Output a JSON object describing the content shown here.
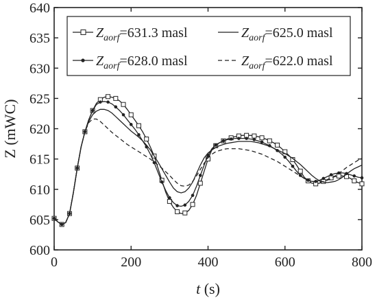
{
  "chart_data": {
    "type": "line",
    "xlabel_var": "t",
    "xlabel_unit": " (s)",
    "ylabel": "Z (mWC)",
    "xlim": [
      0,
      800
    ],
    "ylim": [
      600,
      640
    ],
    "xticks": [
      0,
      200,
      400,
      600,
      800
    ],
    "yticks": [
      600,
      605,
      610,
      615,
      620,
      625,
      630,
      635,
      640
    ],
    "grid": false,
    "legend_placement": "top",
    "series": [
      {
        "name_var": "Z",
        "name_sub": "aorf",
        "name_value": "=631.3 masl",
        "style": "solid-square-markers",
        "x": [
          0,
          10,
          20,
          30,
          40,
          50,
          60,
          70,
          80,
          90,
          100,
          110,
          120,
          130,
          140,
          150,
          160,
          170,
          180,
          190,
          200,
          210,
          220,
          230,
          240,
          250,
          260,
          270,
          280,
          290,
          300,
          310,
          320,
          330,
          340,
          350,
          360,
          370,
          380,
          390,
          400,
          410,
          420,
          430,
          440,
          450,
          460,
          470,
          480,
          490,
          500,
          510,
          520,
          530,
          540,
          550,
          560,
          570,
          580,
          590,
          600,
          610,
          620,
          630,
          640,
          650,
          660,
          670,
          680,
          690,
          700,
          710,
          720,
          730,
          740,
          750,
          760,
          770,
          780,
          790,
          800
        ],
        "y": [
          605.2,
          604.6,
          604.2,
          604.5,
          606.0,
          609.5,
          613.5,
          617.0,
          619.5,
          621.5,
          623.0,
          624.2,
          624.8,
          625.2,
          625.3,
          625.2,
          625.0,
          624.6,
          624.0,
          623.2,
          622.3,
          621.4,
          620.5,
          619.5,
          618.3,
          617.0,
          615.5,
          613.5,
          611.5,
          609.5,
          608.0,
          607.0,
          606.3,
          606.0,
          606.1,
          606.5,
          607.5,
          609.0,
          611.0,
          613.0,
          615.0,
          616.5,
          617.2,
          617.7,
          618.0,
          618.3,
          618.5,
          618.7,
          618.8,
          618.9,
          618.9,
          618.9,
          618.8,
          618.7,
          618.5,
          618.3,
          618.0,
          617.7,
          617.3,
          616.8,
          616.2,
          615.6,
          614.9,
          614.0,
          613.0,
          612.0,
          611.4,
          611.0,
          610.9,
          611.0,
          611.3,
          611.6,
          611.9,
          612.1,
          612.2,
          612.2,
          612.1,
          611.8,
          611.4,
          611.1,
          610.9
        ]
      },
      {
        "name_var": "Z",
        "name_sub": "aorf",
        "name_value": "=625.0 masl",
        "style": "solid",
        "x": [
          0,
          10,
          20,
          30,
          40,
          50,
          60,
          70,
          80,
          90,
          100,
          110,
          120,
          130,
          140,
          150,
          160,
          170,
          180,
          190,
          200,
          210,
          220,
          230,
          240,
          250,
          260,
          270,
          280,
          290,
          300,
          310,
          320,
          330,
          340,
          350,
          360,
          370,
          380,
          390,
          400,
          410,
          420,
          430,
          440,
          450,
          460,
          470,
          480,
          490,
          500,
          510,
          520,
          530,
          540,
          550,
          560,
          570,
          580,
          590,
          600,
          610,
          620,
          630,
          640,
          650,
          660,
          670,
          680,
          690,
          700,
          710,
          720,
          730,
          740,
          750,
          760,
          770,
          780,
          790,
          800
        ],
        "y": [
          605.2,
          604.6,
          604.2,
          604.5,
          606.0,
          609.5,
          613.5,
          617.0,
          619.5,
          621.2,
          622.3,
          622.9,
          623.2,
          623.2,
          623.0,
          622.6,
          622.0,
          621.4,
          620.8,
          620.2,
          619.6,
          619.1,
          618.6,
          618.0,
          617.3,
          616.5,
          615.5,
          614.5,
          613.4,
          612.3,
          611.2,
          610.2,
          609.6,
          609.4,
          609.6,
          610.2,
          611.2,
          612.6,
          614.0,
          615.2,
          616.0,
          616.5,
          616.9,
          617.2,
          617.4,
          617.6,
          617.7,
          617.8,
          617.9,
          617.9,
          617.9,
          617.9,
          617.8,
          617.7,
          617.5,
          617.3,
          617.1,
          616.8,
          616.5,
          616.2,
          615.9,
          615.5,
          615.1,
          614.6,
          614.1,
          613.5,
          612.9,
          612.3,
          611.8,
          611.4,
          611.2,
          611.1,
          611.2,
          611.3,
          611.6,
          612.0,
          612.5,
          613.0,
          613.4,
          613.7,
          614.0
        ]
      },
      {
        "name_var": "Z",
        "name_sub": "aorf",
        "name_value": "=628.0 masl",
        "style": "solid-dot-markers",
        "x": [
          0,
          10,
          20,
          30,
          40,
          50,
          60,
          70,
          80,
          90,
          100,
          110,
          120,
          130,
          140,
          150,
          160,
          170,
          180,
          190,
          200,
          210,
          220,
          230,
          240,
          250,
          260,
          270,
          280,
          290,
          300,
          310,
          320,
          330,
          340,
          350,
          360,
          370,
          380,
          390,
          400,
          410,
          420,
          430,
          440,
          450,
          460,
          470,
          480,
          490,
          500,
          510,
          520,
          530,
          540,
          550,
          560,
          570,
          580,
          590,
          600,
          610,
          620,
          630,
          640,
          650,
          660,
          670,
          680,
          690,
          700,
          710,
          720,
          730,
          740,
          750,
          760,
          770,
          780,
          790,
          800
        ],
        "y": [
          605.2,
          604.6,
          604.2,
          604.5,
          606.0,
          609.5,
          613.5,
          617.0,
          619.5,
          621.5,
          623.0,
          624.0,
          624.4,
          624.5,
          624.4,
          624.1,
          623.6,
          623.0,
          622.3,
          621.5,
          620.7,
          619.9,
          619.0,
          618.0,
          617.0,
          615.8,
          614.4,
          612.8,
          611.2,
          609.8,
          608.6,
          607.8,
          607.3,
          607.2,
          607.4,
          608.0,
          609.0,
          610.5,
          612.3,
          614.0,
          615.6,
          616.7,
          617.3,
          617.7,
          618.0,
          618.2,
          618.3,
          618.4,
          618.4,
          618.4,
          618.4,
          618.3,
          618.2,
          618.0,
          617.8,
          617.5,
          617.2,
          616.8,
          616.4,
          615.9,
          615.3,
          614.6,
          613.8,
          613.0,
          612.3,
          611.8,
          611.5,
          611.3,
          611.3,
          611.5,
          611.8,
          612.1,
          612.4,
          612.6,
          612.7,
          612.7,
          612.6,
          612.4,
          612.2,
          612.0,
          611.9
        ]
      },
      {
        "name_var": "Z",
        "name_sub": "aorf",
        "name_value": "=622.0 masl",
        "style": "dashed",
        "x": [
          0,
          10,
          20,
          30,
          40,
          50,
          60,
          70,
          80,
          90,
          100,
          110,
          120,
          130,
          140,
          150,
          160,
          170,
          180,
          190,
          200,
          210,
          220,
          230,
          240,
          250,
          260,
          270,
          280,
          290,
          300,
          310,
          320,
          330,
          340,
          350,
          360,
          370,
          380,
          390,
          400,
          410,
          420,
          430,
          440,
          450,
          460,
          470,
          480,
          490,
          500,
          510,
          520,
          530,
          540,
          550,
          560,
          570,
          580,
          590,
          600,
          610,
          620,
          630,
          640,
          650,
          660,
          670,
          680,
          690,
          700,
          710,
          720,
          730,
          740,
          750,
          760,
          770,
          780,
          790,
          800
        ],
        "y": [
          605.2,
          604.6,
          604.2,
          604.5,
          606.0,
          609.5,
          613.5,
          617.0,
          619.5,
          621.0,
          621.6,
          621.6,
          621.2,
          620.6,
          620.0,
          619.4,
          618.9,
          618.4,
          617.9,
          617.4,
          617.0,
          616.6,
          616.2,
          615.8,
          615.4,
          615.0,
          614.5,
          614.0,
          613.5,
          612.9,
          612.3,
          611.6,
          611.0,
          610.6,
          610.5,
          610.7,
          611.3,
          612.2,
          613.3,
          614.3,
          615.2,
          615.8,
          616.2,
          616.4,
          616.6,
          616.7,
          616.7,
          616.7,
          616.7,
          616.6,
          616.5,
          616.4,
          616.2,
          616.0,
          615.8,
          615.5,
          615.2,
          614.9,
          614.6,
          614.2,
          613.8,
          613.4,
          613.0,
          612.6,
          612.2,
          611.8,
          611.5,
          611.3,
          611.2,
          611.2,
          611.3,
          611.5,
          611.8,
          612.2,
          612.6,
          613.1,
          613.6,
          614.0,
          614.4,
          614.8,
          615.1
        ]
      }
    ]
  }
}
